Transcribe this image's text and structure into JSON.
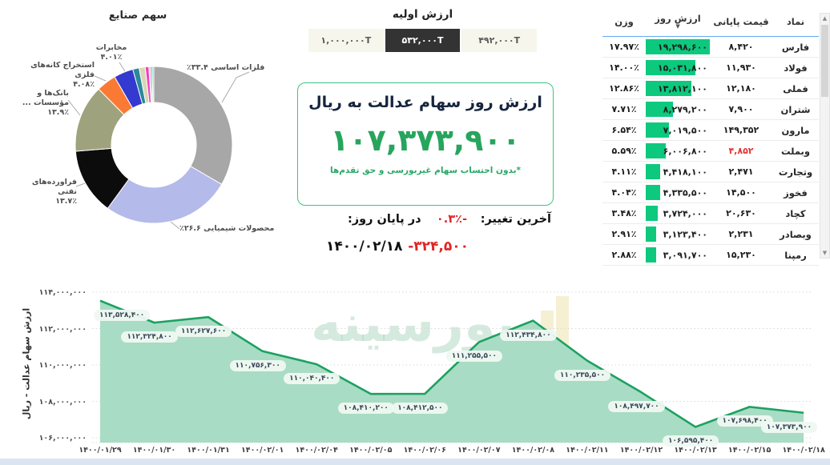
{
  "industries": {
    "title": "سهم صنایع"
  },
  "initial_value": {
    "title": "ارزش اولیه",
    "options": [
      {
        "label": "۱,۰۰۰,۰۰۰T",
        "selected": false
      },
      {
        "label": "۵۳۲,۰۰۰T",
        "selected": true
      },
      {
        "label": "۴۹۲,۰۰۰T",
        "selected": false
      }
    ]
  },
  "main_value": {
    "title": "ارزش روز سهام عدالت به ریال",
    "value": "۱۰۷,۳۷۳,۹۰۰",
    "note": "*بدون احتساب سهام غیربورسی و حق تقدم‌ها"
  },
  "last_change": {
    "label": "آخرین تغییر:",
    "pct": "-۰.۳٪",
    "amount": "-۳۲۴,۵۰۰",
    "eod_label": "در پایان روز:",
    "date": "۱۴۰۰/۰۲/۱۸"
  },
  "table": {
    "headers": [
      {
        "key": "symbol",
        "label": "نماد"
      },
      {
        "key": "close",
        "label": "قیمت پایانی"
      },
      {
        "key": "value",
        "label": "ارزش روز"
      },
      {
        "key": "weight",
        "label": "وزن"
      }
    ],
    "sorted_by": "ارزش روز",
    "max_value": 19298600,
    "rows": [
      {
        "symbol": "فارس",
        "close": "۸,۴۲۰",
        "close_red": false,
        "value_label": "۱۹,۲۹۸,۶۰۰",
        "value": 19298600,
        "weight": "۱۷.۹۷٪"
      },
      {
        "symbol": "فولاد",
        "close": "۱۱,۹۳۰",
        "close_red": false,
        "value_label": "۱۵,۰۳۱,۸۰۰",
        "value": 15031800,
        "weight": "۱۴.۰۰٪"
      },
      {
        "symbol": "فملی",
        "close": "۱۲,۱۸۰",
        "close_red": false,
        "value_label": "۱۳,۸۱۲,۱۰۰",
        "value": 13812100,
        "weight": "۱۲.۸۶٪"
      },
      {
        "symbol": "شتران",
        "close": "۷,۹۰۰",
        "close_red": false,
        "value_label": "۸,۲۷۹,۲۰۰",
        "value": 8279200,
        "weight": "۷.۷۱٪"
      },
      {
        "symbol": "مارون",
        "close": "۱۴۹,۳۵۲",
        "close_red": false,
        "value_label": "۷,۰۱۹,۵۰۰",
        "value": 7019500,
        "weight": "۶.۵۴٪"
      },
      {
        "symbol": "وبملت",
        "close": "۴,۸۵۲",
        "close_red": true,
        "value_label": "۶,۰۰۶,۸۰۰",
        "value": 6006800,
        "weight": "۵.۵۹٪"
      },
      {
        "symbol": "وتجارت",
        "close": "۲,۴۷۱",
        "close_red": false,
        "value_label": "۴,۴۱۸,۱۰۰",
        "value": 4418100,
        "weight": "۴.۱۱٪"
      },
      {
        "symbol": "فخوز",
        "close": "۱۴,۵۰۰",
        "close_red": false,
        "value_label": "۴,۳۳۵,۵۰۰",
        "value": 4335500,
        "weight": "۴.۰۴٪"
      },
      {
        "symbol": "کچاد",
        "close": "۲۰,۶۳۰",
        "close_red": false,
        "value_label": "۳,۷۲۴,۰۰۰",
        "value": 3724000,
        "weight": "۳.۴۸٪"
      },
      {
        "symbol": "وبصادر",
        "close": "۲,۲۳۱",
        "close_red": false,
        "value_label": "۳,۱۲۳,۴۰۰",
        "value": 3123400,
        "weight": "۲.۹۱٪"
      },
      {
        "symbol": "رمپنا",
        "close": "۱۵,۲۳۰",
        "close_red": false,
        "value_label": "۳,۰۹۱,۷۰۰",
        "value": 3091700,
        "weight": "۲.۸۸٪"
      }
    ]
  },
  "watermark": "بورسینه",
  "colors": {
    "accent_green": "#27a55d",
    "bar_green": "#0cc97e",
    "negative_red": "#e02424",
    "selected_dark": "#333333",
    "header_underline": "#63acf2",
    "footer_bar": "#d9e6f2",
    "area_line": "#1ca161",
    "area_fill": "#a9dcc4"
  },
  "chart_data": [
    {
      "type": "pie",
      "subtype": "donut",
      "title": "سهم صنایع",
      "slices": [
        {
          "key": "metals",
          "label": "فلزات اساسی",
          "pct": 33.4,
          "pct_label": "۳۳.۴٪",
          "color": "#a7a7a7"
        },
        {
          "key": "chemicals",
          "label": "محصولات شیمیایی",
          "pct": 26.6,
          "pct_label": "۲۶.۶٪",
          "color": "#b4bae9"
        },
        {
          "key": "oil",
          "label": "فراورده‌های نفتی",
          "pct": 13.7,
          "pct_label": "۱۳.۷٪",
          "color": "#0c0c0c"
        },
        {
          "key": "banks",
          "label": "بانک‌ها و مؤسسات ...",
          "pct": 13.9,
          "pct_label": "۱۳.۹٪",
          "color": "#9fa37d"
        },
        {
          "key": "mining",
          "label": "استخراج کانه‌های فلزی",
          "pct": 4.08,
          "pct_label": "۴.۰۸٪",
          "color": "#fa7a35"
        },
        {
          "key": "telecom",
          "label": "مخابرات",
          "pct": 4.01,
          "pct_label": "۴.۰۱٪",
          "color": "#3439cf"
        },
        {
          "key": "other-1",
          "label": "",
          "pct": 1.3,
          "color": "#2b8898"
        },
        {
          "key": "other-2",
          "label": "",
          "pct": 1.25,
          "color": "#d9d6b4"
        },
        {
          "key": "other-3",
          "label": "",
          "pct": 0.75,
          "color": "#f03fc3"
        },
        {
          "key": "other-4",
          "label": "",
          "pct": 0.35,
          "color": "#ff9fd4"
        },
        {
          "key": "other-5",
          "label": "",
          "pct": 0.35,
          "color": "#3fc979"
        },
        {
          "key": "other-6",
          "label": "",
          "pct": 0.31,
          "color": "#52d5c8"
        }
      ]
    },
    {
      "type": "area",
      "ylabel": "ارزش سهام عدالت - ریال",
      "ylim": [
        106000000,
        114600000
      ],
      "grid": "dotted-horizontal",
      "legend": "none",
      "x": [
        "۱۴۰۰/۰۱/۲۹",
        "۱۴۰۰/۰۱/۳۰",
        "۱۴۰۰/۰۱/۳۱",
        "۱۴۰۰/۰۲/۰۱",
        "۱۴۰۰/۰۲/۰۴",
        "۱۴۰۰/۰۲/۰۵",
        "۱۴۰۰/۰۲/۰۶",
        "۱۴۰۰/۰۲/۰۷",
        "۱۴۰۰/۰۲/۰۸",
        "۱۴۰۰/۰۲/۱۱",
        "۱۴۰۰/۰۲/۱۲",
        "۱۴۰۰/۰۲/۱۳",
        "۱۴۰۰/۰۲/۱۵",
        "۱۴۰۰/۰۲/۱۸"
      ],
      "values": [
        113528400,
        112324800,
        112627600,
        110756300,
        110040400,
        108410200,
        108412500,
        111255500,
        112434800,
        110235500,
        108497700,
        106595400,
        107698400,
        107373900
      ],
      "point_labels": [
        "۱۱۳,۵۲۸,۴۰۰",
        "۱۱۲,۳۲۴,۸۰۰",
        "۱۱۲,۶۲۷,۶۰۰",
        "۱۱۰,۷۵۶,۳۰۰",
        "۱۱۰,۰۴۰,۴۰۰",
        "۱۰۸,۴۱۰,۲۰۰",
        "۱۰۸,۴۱۲,۵۰۰",
        "۱۱۱,۲۵۵,۵۰۰",
        "۱۱۲,۴۳۴,۸۰۰",
        "۱۱۰,۲۳۵,۵۰۰",
        "۱۰۸,۴۹۷,۷۰۰",
        "۱۰۶,۵۹۵,۴۰۰",
        "۱۰۷,۶۹۸,۴۰۰",
        "۱۰۷,۳۷۳,۹۰۰"
      ],
      "yticks": [
        {
          "value": 114000000,
          "label": "۱۱۴,۰۰۰,۰۰۰"
        },
        {
          "value": 112000000,
          "label": "۱۱۲,۰۰۰,۰۰۰"
        },
        {
          "value": 110000000,
          "label": "۱۱۰,۰۰۰,۰۰۰"
        },
        {
          "value": 108000000,
          "label": "۱۰۸,۰۰۰,۰۰۰"
        },
        {
          "value": 106000000,
          "label": "۱۰۶,۰۰۰,۰۰۰"
        }
      ]
    }
  ]
}
